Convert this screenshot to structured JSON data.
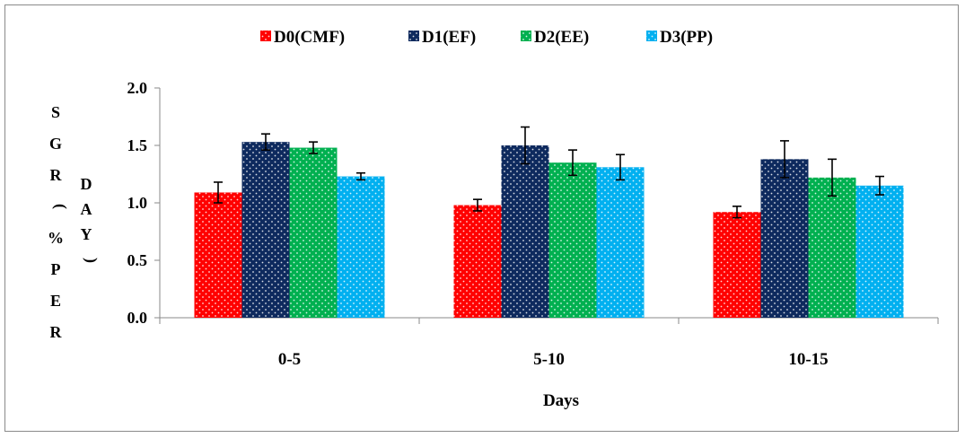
{
  "chart_data": {
    "type": "bar",
    "categories": [
      "0-5",
      "5-10",
      "10-15"
    ],
    "series": [
      {
        "name": "D0(CMF)",
        "color": "#ff0000",
        "values": [
          1.09,
          0.98,
          0.92
        ],
        "errors": [
          0.09,
          0.05,
          0.05
        ]
      },
      {
        "name": "D1(EF)",
        "color": "#0e2a5e",
        "values": [
          1.53,
          1.5,
          1.38
        ],
        "errors": [
          0.07,
          0.16,
          0.16
        ]
      },
      {
        "name": "D2(EE)",
        "color": "#00b050",
        "values": [
          1.48,
          1.35,
          1.22
        ],
        "errors": [
          0.05,
          0.11,
          0.16
        ]
      },
      {
        "name": "D3(PP)",
        "color": "#00b0f0",
        "values": [
          1.23,
          1.31,
          1.15
        ],
        "errors": [
          0.03,
          0.11,
          0.08
        ]
      }
    ],
    "y_ticks": [
      "0.0",
      "0.5",
      "1.0",
      "1.5",
      "2.0"
    ],
    "ylim": [
      0,
      2.0
    ],
    "xlabel": "Days",
    "ylabel_col1": [
      "S",
      "G",
      "R",
      "(",
      "%",
      "P",
      "E",
      "R"
    ],
    "ylabel_col2": [
      "D",
      "A",
      "Y",
      ")"
    ],
    "legend_position": "top-center",
    "grid": false
  }
}
